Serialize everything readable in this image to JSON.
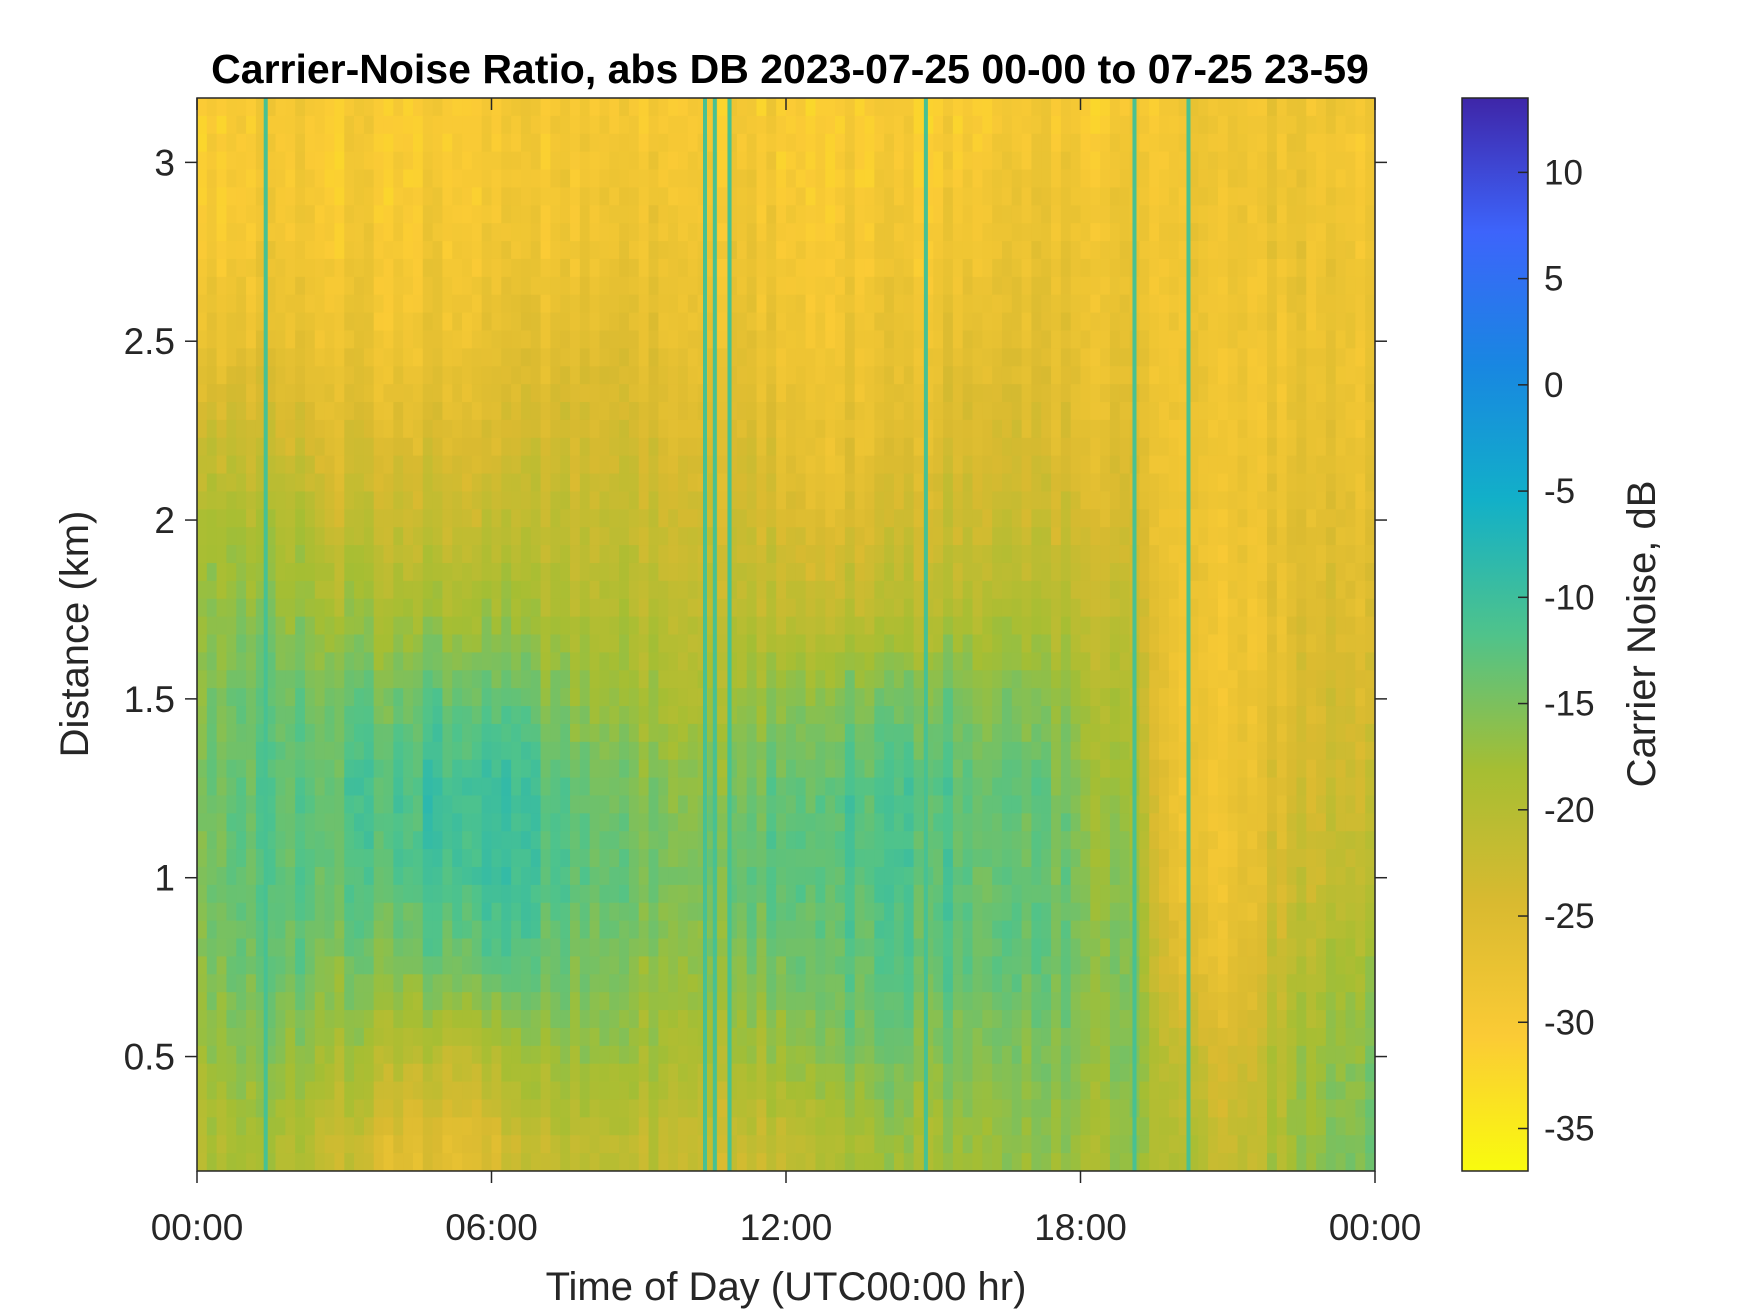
{
  "chart_data": {
    "type": "heatmap",
    "title": "Carrier-Noise Ratio, abs DB 2023-07-25 00-00 to 07-25 23-59",
    "xlabel": "Time of Day (UTC00:00 hr)",
    "ylabel": "Distance (km)",
    "colorbar_label": "Carrier Noise, dB",
    "colormap": "parula",
    "colormap_reversed": true,
    "x_tick_labels": [
      "00:00",
      "06:00",
      "12:00",
      "18:00",
      "00:00"
    ],
    "x_tick_hours": [
      0,
      6,
      12,
      18,
      24
    ],
    "xlim_hours": [
      0,
      24
    ],
    "y_ticks": [
      0.5,
      1,
      1.5,
      2,
      2.5,
      3
    ],
    "y_tick_labels": [
      "0.5",
      "1",
      "1.5",
      "2",
      "2.5",
      "3"
    ],
    "ylim": [
      0.18,
      3.18
    ],
    "color_ticks": [
      10,
      5,
      0,
      -5,
      -10,
      -15,
      -20,
      -25,
      -30,
      -35
    ],
    "color_tick_labels": [
      "10",
      "5",
      "0",
      "-5",
      "-10",
      "-15",
      "-20",
      "-25",
      "-30",
      "-35"
    ],
    "clim": [
      -37,
      13.5
    ],
    "hours": [
      0,
      1,
      2,
      3,
      4,
      5,
      6,
      7,
      8,
      9,
      10,
      11,
      12,
      13,
      14,
      15,
      16,
      17,
      18,
      19,
      20,
      21,
      22,
      23,
      24
    ],
    "distances_km": [
      0.25,
      0.5,
      0.75,
      1.0,
      1.25,
      1.5,
      1.75,
      2.0,
      2.25,
      2.5,
      2.75,
      3.0,
      3.15
    ],
    "cnr_db": [
      [
        -19,
        -17,
        -15,
        -14,
        -14,
        -15,
        -16,
        -18,
        -22,
        -26,
        -29,
        -30,
        -30
      ],
      [
        -18,
        -16,
        -14,
        -13,
        -13,
        -14,
        -16,
        -19,
        -23,
        -27,
        -29,
        -30,
        -30
      ],
      [
        -20,
        -17,
        -14,
        -13,
        -13,
        -14,
        -17,
        -20,
        -24,
        -27,
        -29,
        -30,
        -30
      ],
      [
        -22,
        -18,
        -15,
        -13,
        -12,
        -14,
        -18,
        -22,
        -25,
        -28,
        -29,
        -30,
        -30
      ],
      [
        -25,
        -20,
        -15,
        -12,
        -11,
        -14,
        -18,
        -22,
        -25,
        -28,
        -29,
        -30,
        -30
      ],
      [
        -26,
        -21,
        -14,
        -11,
        -10,
        -13,
        -18,
        -22,
        -25,
        -28,
        -29,
        -30,
        -30
      ],
      [
        -25,
        -20,
        -13,
        -10,
        -10,
        -13,
        -18,
        -22,
        -25,
        -27,
        -29,
        -30,
        -30
      ],
      [
        -22,
        -18,
        -14,
        -12,
        -12,
        -15,
        -19,
        -22,
        -24,
        -27,
        -29,
        -30,
        -30
      ],
      [
        -21,
        -17,
        -15,
        -13,
        -14,
        -17,
        -20,
        -22,
        -24,
        -26,
        -28,
        -29,
        -30
      ],
      [
        -21,
        -18,
        -16,
        -14,
        -15,
        -18,
        -20,
        -22,
        -24,
        -26,
        -28,
        -29,
        -30
      ],
      [
        -22,
        -19,
        -17,
        -15,
        -16,
        -19,
        -21,
        -23,
        -25,
        -27,
        -28,
        -29,
        -30
      ],
      [
        -23,
        -19,
        -16,
        -14,
        -15,
        -18,
        -21,
        -23,
        -25,
        -27,
        -28,
        -29,
        -30
      ],
      [
        -21,
        -17,
        -14,
        -12,
        -13,
        -16,
        -21,
        -24,
        -26,
        -28,
        -29,
        -30,
        -30
      ],
      [
        -19,
        -15,
        -13,
        -12,
        -12,
        -15,
        -21,
        -25,
        -27,
        -28,
        -29,
        -30,
        -30
      ],
      [
        -18,
        -15,
        -13,
        -12,
        -12,
        -15,
        -21,
        -24,
        -27,
        -28,
        -29,
        -30,
        -30
      ],
      [
        -18,
        -15,
        -13,
        -12,
        -12,
        -14,
        -20,
        -23,
        -25,
        -27,
        -29,
        -30,
        -30
      ],
      [
        -17,
        -15,
        -13,
        -13,
        -13,
        -15,
        -19,
        -22,
        -24,
        -26,
        -28,
        -29,
        -30
      ],
      [
        -17,
        -16,
        -14,
        -14,
        -14,
        -16,
        -20,
        -23,
        -25,
        -27,
        -28,
        -29,
        -30
      ],
      [
        -18,
        -16,
        -15,
        -15,
        -16,
        -18,
        -21,
        -24,
        -26,
        -27,
        -28,
        -29,
        -30
      ],
      [
        -17,
        -16,
        -16,
        -17,
        -18,
        -20,
        -22,
        -24,
        -26,
        -27,
        -28,
        -29,
        -30
      ],
      [
        -20,
        -22,
        -26,
        -28,
        -29,
        -29,
        -29,
        -29,
        -29,
        -29,
        -29,
        -29,
        -29
      ],
      [
        -22,
        -24,
        -27,
        -28,
        -28,
        -28,
        -28,
        -28,
        -28,
        -28,
        -28,
        -28,
        -28
      ],
      [
        -19,
        -20,
        -22,
        -24,
        -25,
        -26,
        -27,
        -27,
        -28,
        -28,
        -28,
        -28,
        -28
      ],
      [
        -16,
        -17,
        -19,
        -22,
        -23,
        -24,
        -25,
        -26,
        -27,
        -28,
        -28,
        -29,
        -29
      ],
      [
        -14,
        -15,
        -17,
        -20,
        -22,
        -24,
        -25,
        -26,
        -27,
        -28,
        -28,
        -29,
        -29
      ]
    ],
    "vertical_stripes_hours": [
      1.4,
      10.35,
      10.55,
      10.85,
      14.85,
      19.1,
      20.2
    ],
    "stripe_cnr_db": -11
  }
}
